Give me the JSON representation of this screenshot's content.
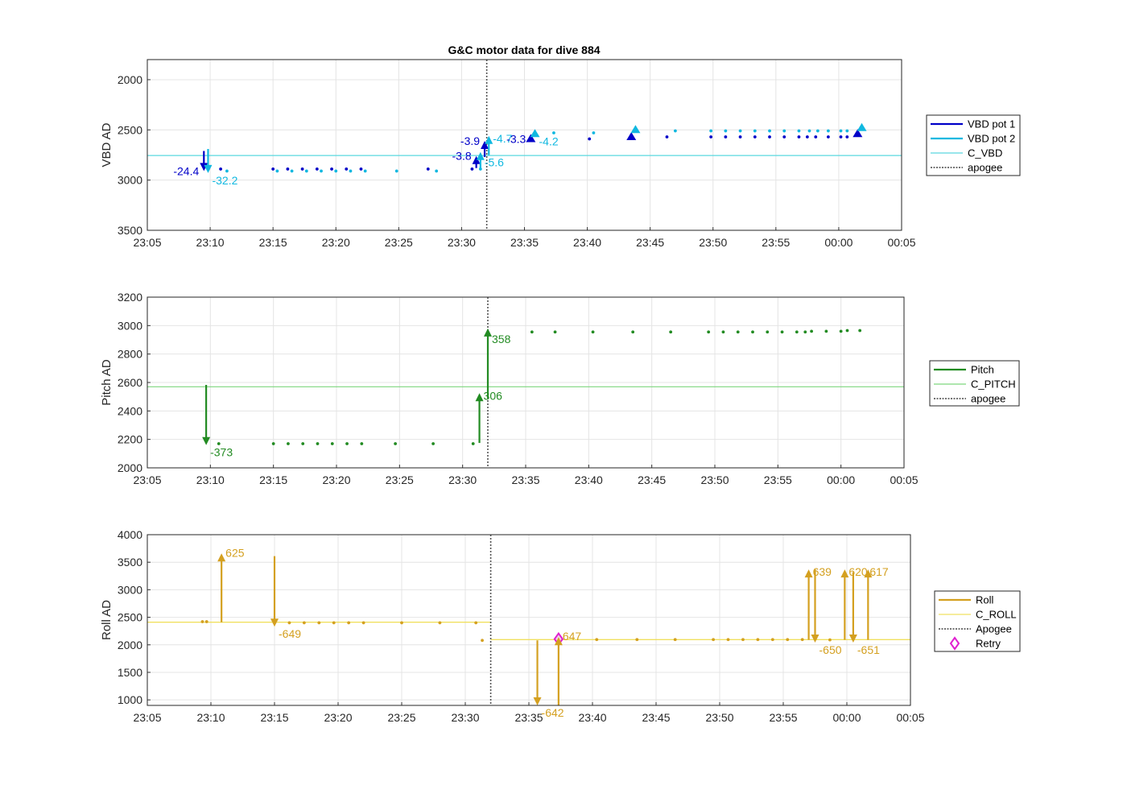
{
  "figure": {
    "title": "G&C motor data for dive 884"
  },
  "chart_data": [
    {
      "type": "scatter",
      "id": "vbd",
      "ylabel": "VBD AD",
      "xlabel": "",
      "x_ticks": [
        "23:05",
        "23:10",
        "23:15",
        "23:20",
        "23:25",
        "23:30",
        "23:35",
        "23:40",
        "23:45",
        "23:50",
        "23:55",
        "00:00",
        "00:05"
      ],
      "xlim": [
        "23:05",
        "00:05"
      ],
      "ylim": [
        1800,
        3500
      ],
      "y_reversed": true,
      "y_ticks": [
        "2000",
        "2500",
        "3000",
        "3500"
      ],
      "grid": true,
      "legend_position": "outside-right",
      "apogee": "23:32",
      "references": [
        {
          "name": "C_VBD",
          "value": 2755,
          "color": "#5ad8df"
        }
      ],
      "legend": [
        {
          "label": "VBD pot 1",
          "color": "#0000c8",
          "style": "thick"
        },
        {
          "label": "VBD pot 2",
          "color": "#10b8e0",
          "style": "thick"
        },
        {
          "label": "C_VBD",
          "color": "#5ad8df",
          "style": "thin"
        },
        {
          "label": "apogee",
          "color": "#444444",
          "style": "dotted"
        }
      ],
      "series": [
        {
          "name": "VBD pot 1",
          "color": "#0000c8",
          "marker": "dot",
          "points": [
            [
              "23:10:50",
              2890
            ],
            [
              "23:15:00",
              2890
            ],
            [
              "23:16:10",
              2890
            ],
            [
              "23:17:20",
              2890
            ],
            [
              "23:18:30",
              2890
            ],
            [
              "23:19:40",
              2890
            ],
            [
              "23:20:50",
              2890
            ],
            [
              "23:22:00",
              2890
            ],
            [
              "23:27:20",
              2890
            ],
            [
              "23:30:50",
              2890
            ],
            [
              "23:40:10",
              2590
            ],
            [
              "23:46:20",
              2570
            ],
            [
              "23:49:50",
              2570
            ],
            [
              "23:51:00",
              2570
            ],
            [
              "23:52:10",
              2570
            ],
            [
              "23:53:20",
              2570
            ],
            [
              "23:54:30",
              2570
            ],
            [
              "23:55:40",
              2570
            ],
            [
              "23:56:50",
              2570
            ],
            [
              "23:57:30",
              2570
            ],
            [
              "23:58:10",
              2570
            ],
            [
              "23:59:10",
              2570
            ],
            [
              "00:00:10",
              2570
            ],
            [
              "00:00:40",
              2570
            ]
          ]
        },
        {
          "name": "VBD pot 2",
          "color": "#10b8e0",
          "marker": "dot",
          "points": [
            [
              "23:11:20",
              2910
            ],
            [
              "23:15:20",
              2910
            ],
            [
              "23:16:30",
              2910
            ],
            [
              "23:17:40",
              2910
            ],
            [
              "23:18:50",
              2910
            ],
            [
              "23:20:00",
              2910
            ],
            [
              "23:21:10",
              2910
            ],
            [
              "23:22:20",
              2910
            ],
            [
              "23:24:50",
              2910
            ],
            [
              "23:28:00",
              2910
            ],
            [
              "23:31:30",
              2890
            ],
            [
              "23:37:20",
              2530
            ],
            [
              "23:40:30",
              2530
            ],
            [
              "23:47:00",
              2510
            ],
            [
              "23:49:50",
              2510
            ],
            [
              "23:51:00",
              2510
            ],
            [
              "23:52:10",
              2510
            ],
            [
              "23:53:20",
              2510
            ],
            [
              "23:54:30",
              2510
            ],
            [
              "23:55:40",
              2510
            ],
            [
              "23:56:50",
              2510
            ],
            [
              "23:57:40",
              2510
            ],
            [
              "23:58:20",
              2510
            ],
            [
              "23:59:10",
              2510
            ],
            [
              "00:00:10",
              2510
            ],
            [
              "00:00:40",
              2510
            ]
          ]
        },
        {
          "name": "VBD pot 1 markers",
          "color": "#0000c8",
          "marker": "triangle",
          "points": [
            [
              "23:35:30",
              2590
            ],
            [
              "23:43:30",
              2570
            ],
            [
              "00:01:30",
              2540
            ]
          ]
        },
        {
          "name": "VBD pot 2 markers",
          "color": "#10b8e0",
          "marker": "triangle",
          "points": [
            [
              "23:35:50",
              2540
            ],
            [
              "23:43:50",
              2500
            ],
            [
              "00:01:50",
              2480
            ]
          ]
        }
      ],
      "arrows": [
        {
          "x": "23:09:30",
          "from": 2710,
          "to": 2910,
          "color": "#0000c8",
          "label": "-24.4",
          "label_side": "left"
        },
        {
          "x": "23:09:50",
          "from": 2690,
          "to": 2930,
          "color": "#10b8e0",
          "label": "-32.2",
          "label_side": "right-below"
        },
        {
          "x": "23:31:10",
          "from": 2880,
          "to": 2760,
          "color": "#0000c8",
          "label": "-3.8",
          "label_side": "left"
        },
        {
          "x": "23:31:30",
          "from": 2900,
          "to": 2720,
          "color": "#10b8e0",
          "label": "-5.6",
          "label_side": "right-below"
        },
        {
          "x": "23:31:50",
          "from": 2770,
          "to": 2610,
          "color": "#0000c8",
          "label": "-3.9",
          "label_side": "left"
        },
        {
          "x": "23:32:10",
          "from": 2750,
          "to": 2560,
          "color": "#10b8e0",
          "label": "-4.7",
          "label_side": "right"
        },
        {
          "x": "23:35:30",
          "from": 2590,
          "to": 2590,
          "color": "#0000c8",
          "label": "-3.3",
          "label_side": "left"
        },
        {
          "x": "23:35:50",
          "from": 2540,
          "to": 2540,
          "color": "#10b8e0",
          "label": "-4.2",
          "label_side": "right-below"
        }
      ]
    },
    {
      "type": "scatter",
      "id": "pitch",
      "ylabel": "Pitch AD",
      "xlabel": "",
      "x_ticks": [
        "23:05",
        "23:10",
        "23:15",
        "23:20",
        "23:25",
        "23:30",
        "23:35",
        "23:40",
        "23:45",
        "23:50",
        "23:55",
        "00:00",
        "00:05"
      ],
      "xlim": [
        "23:05",
        "00:05"
      ],
      "ylim": [
        2000,
        3200
      ],
      "y_reversed": false,
      "y_ticks": [
        "2000",
        "2200",
        "2400",
        "2600",
        "2800",
        "3000",
        "3200"
      ],
      "grid": true,
      "legend_position": "outside-right",
      "apogee": "23:32",
      "references": [
        {
          "name": "C_PITCH",
          "value": 2570,
          "color": "#7ed67e"
        }
      ],
      "legend": [
        {
          "label": "Pitch",
          "color": "#228b22",
          "style": "thick"
        },
        {
          "label": "C_PITCH",
          "color": "#7ed67e",
          "style": "thin"
        },
        {
          "label": "apogee",
          "color": "#444444",
          "style": "dotted"
        }
      ],
      "series": [
        {
          "name": "Pitch",
          "color": "#228b22",
          "marker": "dot",
          "points": [
            [
              "23:10:40",
              2170
            ],
            [
              "23:15:00",
              2170
            ],
            [
              "23:16:10",
              2170
            ],
            [
              "23:17:20",
              2170
            ],
            [
              "23:18:30",
              2170
            ],
            [
              "23:19:40",
              2170
            ],
            [
              "23:20:50",
              2170
            ],
            [
              "23:22:00",
              2170
            ],
            [
              "23:24:40",
              2170
            ],
            [
              "23:27:40",
              2170
            ],
            [
              "23:30:50",
              2170
            ],
            [
              "23:35:30",
              2955
            ],
            [
              "23:37:20",
              2955
            ],
            [
              "23:40:20",
              2955
            ],
            [
              "23:43:30",
              2955
            ],
            [
              "23:46:30",
              2955
            ],
            [
              "23:49:30",
              2955
            ],
            [
              "23:50:40",
              2955
            ],
            [
              "23:51:50",
              2955
            ],
            [
              "23:53:00",
              2955
            ],
            [
              "23:54:10",
              2955
            ],
            [
              "23:55:20",
              2955
            ],
            [
              "23:56:30",
              2955
            ],
            [
              "23:57:10",
              2955
            ],
            [
              "23:57:40",
              2960
            ],
            [
              "23:58:50",
              2960
            ],
            [
              "00:00:00",
              2960
            ],
            [
              "00:00:30",
              2965
            ],
            [
              "00:01:30",
              2965
            ]
          ]
        }
      ],
      "arrows": [
        {
          "x": "23:09:40",
          "from": 2583,
          "to": 2160,
          "color": "#228b22",
          "label": "-373",
          "label_side": "right-below"
        },
        {
          "x": "23:31:20",
          "from": 2175,
          "to": 2525,
          "color": "#228b22",
          "label": "306",
          "label_side": "right"
        },
        {
          "x": "23:32:00",
          "from": 2490,
          "to": 2980,
          "color": "#228b22",
          "label": "358",
          "label_side": "right-below"
        }
      ]
    },
    {
      "type": "scatter",
      "id": "roll",
      "ylabel": "Roll AD",
      "xlabel": "",
      "x_ticks": [
        "23:05",
        "23:10",
        "23:15",
        "23:20",
        "23:25",
        "23:30",
        "23:35",
        "23:40",
        "23:45",
        "23:50",
        "23:55",
        "00:00",
        "00:05"
      ],
      "xlim": [
        "23:05",
        "00:05"
      ],
      "ylim": [
        900,
        4000
      ],
      "y_reversed": false,
      "y_ticks": [
        "1000",
        "1500",
        "2000",
        "2500",
        "3000",
        "3500",
        "4000"
      ],
      "grid": true,
      "legend_position": "outside-right",
      "apogee": "23:32",
      "reference_segments": [
        {
          "name": "C_ROLL",
          "from": "23:05",
          "to": "23:32",
          "value": 2410,
          "color": "#f0e060"
        },
        {
          "name": "C_ROLL",
          "from": "23:32",
          "to": "00:05",
          "value": 2095,
          "color": "#f0e060"
        }
      ],
      "legend": [
        {
          "label": "Roll",
          "color": "#d4a020",
          "style": "thick"
        },
        {
          "label": "C_ROLL",
          "color": "#f0e060",
          "style": "thin"
        },
        {
          "label": "Apogee",
          "color": "#444444",
          "style": "dotted"
        },
        {
          "label": "Retry",
          "color": "#e020d0",
          "style": "diamond"
        }
      ],
      "series": [
        {
          "name": "Roll",
          "color": "#d4a020",
          "marker": "dot",
          "points": [
            [
              "23:09:20",
              2420
            ],
            [
              "23:09:40",
              2420
            ],
            [
              "23:16:10",
              2400
            ],
            [
              "23:17:20",
              2400
            ],
            [
              "23:18:30",
              2400
            ],
            [
              "23:19:40",
              2400
            ],
            [
              "23:20:50",
              2400
            ],
            [
              "23:22:00",
              2400
            ],
            [
              "23:25:00",
              2400
            ],
            [
              "23:28:00",
              2400
            ],
            [
              "23:30:50",
              2400
            ],
            [
              "23:31:20",
              2080
            ],
            [
              "23:40:20",
              2095
            ],
            [
              "23:43:30",
              2095
            ],
            [
              "23:46:30",
              2095
            ],
            [
              "23:49:30",
              2095
            ],
            [
              "23:50:40",
              2095
            ],
            [
              "23:51:50",
              2095
            ],
            [
              "23:53:00",
              2095
            ],
            [
              "23:54:10",
              2095
            ],
            [
              "23:55:20",
              2095
            ],
            [
              "23:56:30",
              2095
            ],
            [
              "23:58:40",
              2090
            ]
          ]
        },
        {
          "name": "Retry",
          "color": "#e020d0",
          "marker": "diamond",
          "points": [
            [
              "23:37:20",
              2105
            ]
          ]
        }
      ],
      "arrows": [
        {
          "x": "23:10:50",
          "from": 2410,
          "to": 3660,
          "color": "#d4a020",
          "label": "625",
          "label_side": "right-above"
        },
        {
          "x": "23:15:00",
          "from": 3610,
          "to": 2330,
          "color": "#d4a020",
          "label": "-649",
          "label_side": "right-below"
        },
        {
          "x": "23:35:40",
          "from": 2080,
          "to": 900,
          "color": "#d4a020",
          "label": "-642",
          "label_side": "right-below"
        },
        {
          "x": "23:37:20",
          "from": 860,
          "to": 2140,
          "color": "#d4a020",
          "label": "647",
          "label_side": "right-above"
        },
        {
          "x": "23:57:00",
          "from": 2090,
          "to": 3370,
          "color": "#d4a020",
          "label": "639",
          "label_side": "right"
        },
        {
          "x": "23:57:30",
          "from": 3370,
          "to": 2040,
          "color": "#d4a020",
          "label": "-650",
          "label_side": "right-below"
        },
        {
          "x": "23:59:50",
          "from": 2090,
          "to": 3370,
          "color": "#d4a020",
          "label": "620",
          "label_side": "right"
        },
        {
          "x": "00:00:30",
          "from": 3320,
          "to": 2040,
          "color": "#d4a020",
          "label": "-651",
          "label_side": "right-below"
        },
        {
          "x": "00:01:40",
          "from": 2090,
          "to": 3370,
          "color": "#d4a020",
          "label": "617",
          "label_side": "left-right"
        }
      ]
    }
  ]
}
